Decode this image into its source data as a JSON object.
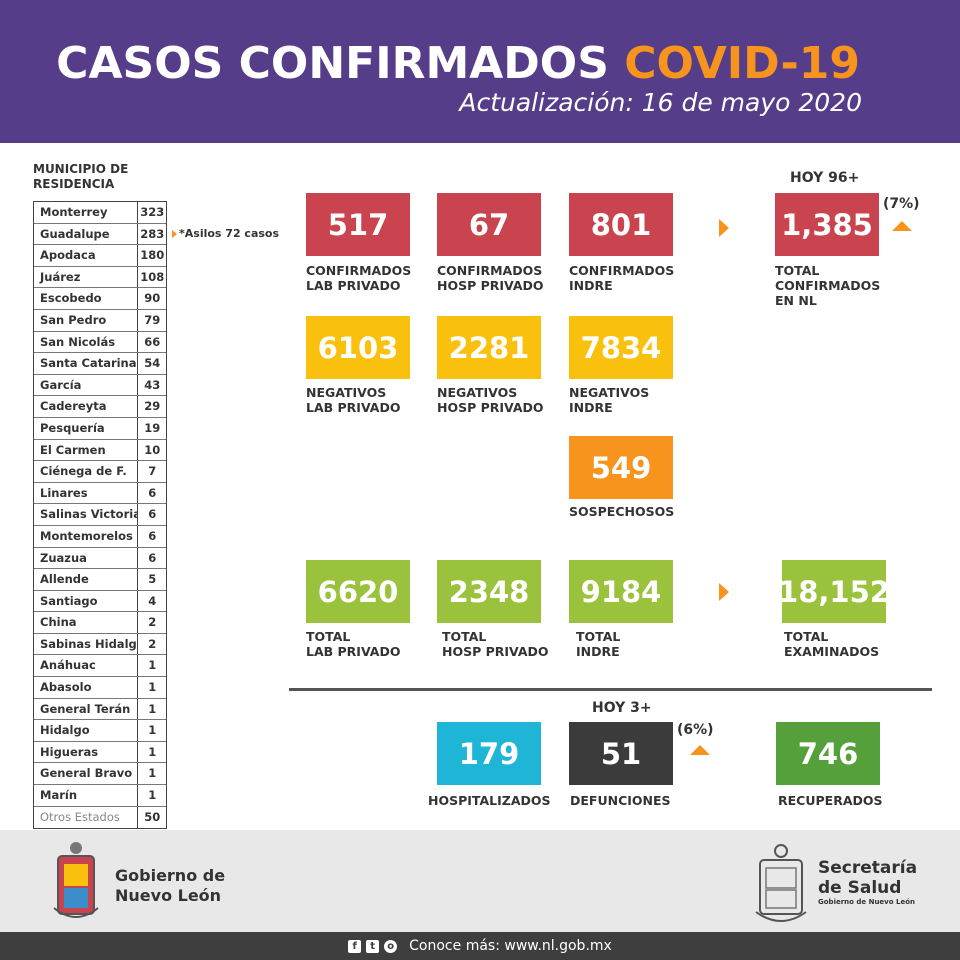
{
  "header": {
    "title_main": "CASOS CONFIRMADOS ",
    "title_accent": "COVID-19",
    "subtitle": "Actualización: 16 de mayo 2020"
  },
  "municipios": {
    "heading_line1": "MUNICIPIO DE",
    "heading_line2": "RESIDENCIA",
    "note": "*Asilos 72 casos",
    "rows": [
      {
        "name": "Monterrey",
        "value": "323"
      },
      {
        "name": "Guadalupe",
        "value": "283"
      },
      {
        "name": "Apodaca",
        "value": "180"
      },
      {
        "name": "Juárez",
        "value": "108"
      },
      {
        "name": "Escobedo",
        "value": "90"
      },
      {
        "name": "San Pedro",
        "value": "79"
      },
      {
        "name": "San Nicolás",
        "value": "66"
      },
      {
        "name": "Santa Catarina",
        "value": "54"
      },
      {
        "name": "García",
        "value": "43"
      },
      {
        "name": "Cadereyta",
        "value": "29"
      },
      {
        "name": "Pesquería",
        "value": "19"
      },
      {
        "name": "El Carmen",
        "value": "10"
      },
      {
        "name": "Ciénega de F.",
        "value": "7"
      },
      {
        "name": "Linares",
        "value": "6"
      },
      {
        "name": "Salinas Victoria",
        "value": "6"
      },
      {
        "name": "Montemorelos",
        "value": "6"
      },
      {
        "name": "Zuazua",
        "value": "6"
      },
      {
        "name": "Allende",
        "value": "5"
      },
      {
        "name": "Santiago",
        "value": "4"
      },
      {
        "name": "China",
        "value": "2"
      },
      {
        "name": "Sabinas Hidalgo",
        "value": "2"
      },
      {
        "name": "Anáhuac",
        "value": "1"
      },
      {
        "name": "Abasolo",
        "value": "1"
      },
      {
        "name": "General Terán",
        "value": "1"
      },
      {
        "name": "Hidalgo",
        "value": "1"
      },
      {
        "name": "Higueras",
        "value": "1"
      },
      {
        "name": "General Bravo",
        "value": "1"
      },
      {
        "name": "Marín",
        "value": "1"
      },
      {
        "name": "Otros Estados",
        "value": "50"
      }
    ]
  },
  "confirmados": {
    "hoy": "HOY 96+",
    "pct": "(7%)",
    "lab_privado": {
      "value": "517",
      "label1": "CONFIRMADOS",
      "label2": "LAB PRIVADO"
    },
    "hosp_privado": {
      "value": "67",
      "label1": "CONFIRMADOS",
      "label2": "HOSP PRIVADO"
    },
    "indre": {
      "value": "801",
      "label1": "CONFIRMADOS",
      "label2": "INDRE"
    },
    "total": {
      "value": "1,385",
      "label1": "TOTAL",
      "label2": "CONFIRMADOS",
      "label3": "EN NL"
    }
  },
  "negativos": {
    "lab_privado": {
      "value": "6103",
      "label1": "NEGATIVOS",
      "label2": "LAB PRIVADO"
    },
    "hosp_privado": {
      "value": "2281",
      "label1": "NEGATIVOS",
      "label2": "HOSP PRIVADO"
    },
    "indre": {
      "value": "7834",
      "label1": "NEGATIVOS",
      "label2": "INDRE"
    }
  },
  "sospechosos": {
    "value": "549",
    "label": "SOSPECHOSOS"
  },
  "totales": {
    "lab_privado": {
      "value": "6620",
      "label1": "TOTAL",
      "label2": "LAB PRIVADO"
    },
    "hosp_privado": {
      "value": "2348",
      "label1": "TOTAL",
      "label2": "HOSP PRIVADO"
    },
    "indre": {
      "value": "9184",
      "label1": "TOTAL",
      "label2": "INDRE"
    },
    "examinados": {
      "value": "18,152",
      "label1": "TOTAL",
      "label2": "EXAMINADOS"
    }
  },
  "estado": {
    "hoy": "HOY 3+",
    "pct": "(6%)",
    "hospitalizados": {
      "value": "179",
      "label": "HOSPITALIZADOS"
    },
    "defunciones": {
      "value": "51",
      "label": "DEFUNCIONES"
    },
    "recuperados": {
      "value": "746",
      "label": "RECUPERADOS"
    }
  },
  "footer": {
    "gob_line1": "Gobierno de",
    "gob_line2": "Nuevo León",
    "salud_line1": "Secretaría",
    "salud_line2": "de Salud",
    "salud_sub": "Gobierno de Nuevo León",
    "bottom_text": "Conoce más: www.nl.gob.mx",
    "social_icons": [
      "facebook-icon",
      "twitter-icon",
      "instagram-icon"
    ]
  },
  "colors": {
    "header_purple": "#563d8a",
    "accent_orange": "#f7941d",
    "confirmed_red": "#c9444e",
    "negative_yellow": "#f9c10e",
    "total_green": "#9bc23c",
    "hospital_cyan": "#1fb5d6",
    "deaths_dark": "#3b3b3b",
    "recovered_green": "#55a03a"
  }
}
